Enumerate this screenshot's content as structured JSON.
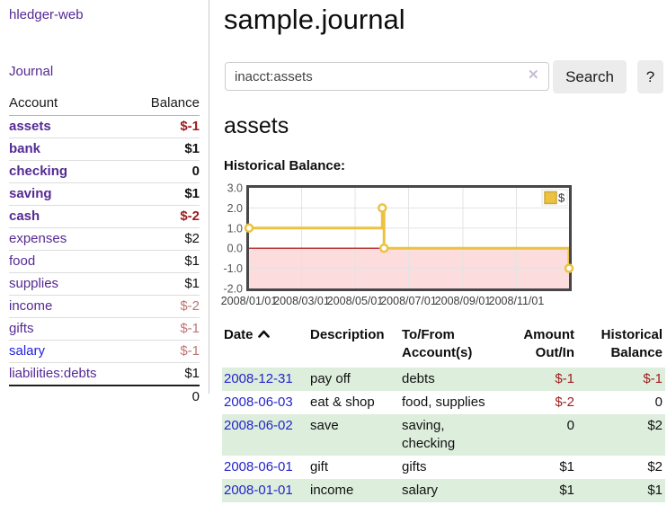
{
  "app": {
    "title": "hledger-web"
  },
  "sidebar": {
    "journal_link": "Journal",
    "accounts": {
      "header_account": "Account",
      "header_balance": "Balance",
      "rows": [
        {
          "name": "assets",
          "balance": "$-1"
        },
        {
          "name": "bank",
          "balance": "$1"
        },
        {
          "name": "checking",
          "balance": "0"
        },
        {
          "name": "saving",
          "balance": "$1"
        },
        {
          "name": "cash",
          "balance": "$-2"
        },
        {
          "name": "expenses",
          "balance": "$2"
        },
        {
          "name": "food",
          "balance": "$1"
        },
        {
          "name": "supplies",
          "balance": "$1"
        },
        {
          "name": "income",
          "balance": "$-2"
        },
        {
          "name": "gifts",
          "balance": "$-1"
        },
        {
          "name": "salary",
          "balance": "$-1"
        },
        {
          "name": "liabilities:debts",
          "balance": "$1"
        }
      ],
      "total": "0"
    }
  },
  "main": {
    "title": "sample.journal",
    "search": {
      "value": "inacct:assets",
      "clear_icon": "✕",
      "button": "Search",
      "help_button": "?"
    },
    "account_heading": "assets",
    "chart_label": "Historical Balance:"
  },
  "chart_data": {
    "type": "line",
    "title": "Historical Balance",
    "step": true,
    "series": [
      {
        "name": "$",
        "points": [
          [
            "2008-01-01",
            1
          ],
          [
            "2008-06-01",
            2
          ],
          [
            "2008-06-03",
            0
          ],
          [
            "2008-12-31",
            -1
          ]
        ]
      }
    ],
    "x_range": [
      "2008-01-01",
      "2008-12-31"
    ],
    "ylim": [
      -2,
      3
    ],
    "y_ticks": [
      3,
      2,
      1,
      0,
      -1,
      -2
    ],
    "y_tick_labels": [
      "3.0",
      "2.0",
      "1.0",
      "0.0",
      "-1.0",
      "-2.0"
    ],
    "x_ticks": [
      "2008-01-01",
      "2008-03-01",
      "2008-05-01",
      "2008-07-01",
      "2008-09-01",
      "2008-11-01"
    ],
    "x_tick_labels": [
      "2008/01/01",
      "2008/03/01",
      "2008/05/01",
      "2008/07/01",
      "2008/09/01",
      "2008/11/01"
    ],
    "legend": "$",
    "legend_position": "top-right",
    "grid": true,
    "colors": {
      "line": "#edc240",
      "point_fill": "#ffffff",
      "negative_region": "#fcdcdc",
      "zero_line": "#a00000",
      "grid": "#e3e3e3",
      "border": "#474747",
      "tick_text": "#545454",
      "legend_swatch_border": "#cda73a"
    }
  },
  "register": {
    "headers": {
      "date": "Date",
      "description": "Description",
      "accounts": "To/From Account(s)",
      "amount": "Amount Out/In",
      "balance": "Historical Balance"
    },
    "rows": [
      {
        "date": "2008-12-31",
        "description": "pay off",
        "accounts": "debts",
        "amount": "$-1",
        "balance": "$-1"
      },
      {
        "date": "2008-06-03",
        "description": "eat & shop",
        "accounts": "food, supplies",
        "amount": "$-2",
        "balance": "0"
      },
      {
        "date": "2008-06-02",
        "description": "save",
        "accounts": "saving, checking",
        "amount": "0",
        "balance": "$2"
      },
      {
        "date": "2008-06-01",
        "description": "gift",
        "accounts": "gifts",
        "amount": "$1",
        "balance": "$2"
      },
      {
        "date": "2008-01-01",
        "description": "income",
        "accounts": "salary",
        "amount": "$1",
        "balance": "$1"
      }
    ]
  }
}
